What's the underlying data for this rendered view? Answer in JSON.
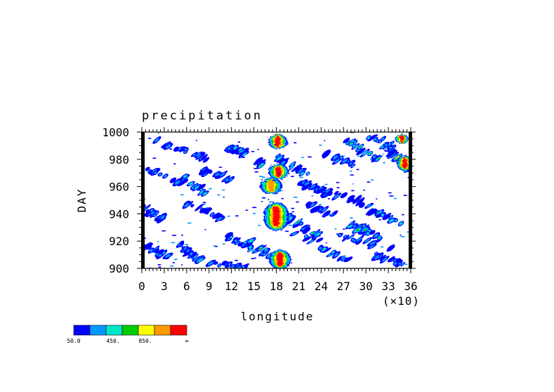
{
  "chart_data": {
    "type": "heatmap",
    "title": "precipitation",
    "xlabel": "longitude",
    "ylabel": "DAY",
    "x_multiplier_label": "(×10)",
    "xlim": [
      0,
      36
    ],
    "ylim": [
      900,
      1000
    ],
    "x_ticks": [
      0,
      3,
      6,
      9,
      12,
      15,
      18,
      21,
      24,
      27,
      30,
      33,
      36
    ],
    "y_ticks": [
      900,
      920,
      940,
      960,
      980,
      1000
    ],
    "grid": false,
    "colorbar": {
      "placement": "bottom-left",
      "colors": [
        "#0000ff",
        "#0099ff",
        "#00e6c8",
        "#00cc00",
        "#ffff00",
        "#ff9900",
        "#ff0000"
      ],
      "labels": [
        "50.0",
        "450.",
        "850.",
        "∞"
      ]
    },
    "features": [
      {
        "type": "band",
        "lon": [
          0.5,
          5.5
        ],
        "day": [
          974,
          962
        ],
        "level": 1
      },
      {
        "type": "band",
        "lon": [
          5.5,
          9.0
        ],
        "day": [
          967,
          953
        ],
        "level": 2
      },
      {
        "type": "band",
        "lon": [
          6.0,
          11.0
        ],
        "day": [
          948,
          936
        ],
        "level": 1
      },
      {
        "type": "band",
        "lon": [
          11.5,
          14.0
        ],
        "day": [
          989,
          984
        ],
        "level": 2
      },
      {
        "type": "band",
        "lon": [
          12.5,
          16.0
        ],
        "day": [
          988,
          976
        ],
        "level": 3
      },
      {
        "type": "band",
        "lon": [
          11.0,
          15.5
        ],
        "day": [
          925,
          912
        ],
        "level": 2
      },
      {
        "type": "band",
        "lon": [
          2.0,
          9.0
        ],
        "day": [
          993,
          980
        ],
        "level": 1
      },
      {
        "type": "band",
        "lon": [
          5.0,
          8.0
        ],
        "day": [
          918,
          905
        ],
        "level": 2
      },
      {
        "type": "band",
        "lon": [
          18.5,
          24.0
        ],
        "day": [
          940,
          922
        ],
        "level": 3
      },
      {
        "type": "band",
        "lon": [
          20.0,
          27.5
        ],
        "day": [
          928,
          905
        ],
        "level": 2
      },
      {
        "type": "band",
        "lon": [
          22.0,
          26.5
        ],
        "day": [
          947,
          938
        ],
        "level": 1
      },
      {
        "type": "band",
        "lon": [
          21.5,
          25.0
        ],
        "day": [
          962,
          955
        ],
        "level": 1
      },
      {
        "type": "band",
        "lon": [
          24.0,
          30.5
        ],
        "day": [
          958,
          946
        ],
        "level": 1
      },
      {
        "type": "band",
        "lon": [
          27.0,
          31.5
        ],
        "day": [
          995,
          980
        ],
        "level": 3
      },
      {
        "type": "band",
        "lon": [
          28.0,
          32.0
        ],
        "day": [
          932,
          922
        ],
        "level": 3
      },
      {
        "type": "band",
        "lon": [
          30.5,
          36.0
        ],
        "day": [
          943,
          930
        ],
        "level": 2
      },
      {
        "type": "band",
        "lon": [
          26.0,
          34.0
        ],
        "day": [
          925,
          913
        ],
        "level": 1
      },
      {
        "type": "band",
        "lon": [
          32.5,
          36.0
        ],
        "day": [
          990,
          972
        ],
        "level": 5
      },
      {
        "type": "band",
        "lon": [
          30.0,
          34.0
        ],
        "day": [
          998,
          988
        ],
        "level": 2
      },
      {
        "type": "band",
        "lon": [
          14.5,
          20.0
        ],
        "day": [
          920,
          900
        ],
        "level": 3
      },
      {
        "type": "band",
        "lon": [
          9.0,
          14.0
        ],
        "day": [
          905,
          900
        ],
        "level": 1
      },
      {
        "type": "band",
        "lon": [
          31.0,
          35.5
        ],
        "day": [
          910,
          902
        ],
        "level": 1
      },
      {
        "type": "band",
        "lon": [
          0.0,
          3.5
        ],
        "day": [
          918,
          908
        ],
        "level": 1
      },
      {
        "type": "band",
        "lon": [
          17.5,
          22.0
        ],
        "day": [
          983,
          970
        ],
        "level": 2
      },
      {
        "type": "band",
        "lon": [
          24.0,
          28.5
        ],
        "day": [
          985,
          976
        ],
        "level": 1
      },
      {
        "type": "band",
        "lon": [
          0.0,
          3.0
        ],
        "day": [
          945,
          936
        ],
        "level": 1
      },
      {
        "type": "band",
        "lon": [
          8.0,
          12.0
        ],
        "day": [
          972,
          965
        ],
        "level": 1
      },
      {
        "type": "col",
        "lon": 18.5,
        "day": [
          900,
          913
        ],
        "w": 1.4,
        "level": 6
      },
      {
        "type": "col",
        "lon": 18.0,
        "day": [
          928,
          948
        ],
        "w": 1.6,
        "level": 6
      },
      {
        "type": "col",
        "lon": 18.3,
        "day": [
          966,
          976
        ],
        "w": 1.3,
        "level": 6
      },
      {
        "type": "col",
        "lon": 18.2,
        "day": [
          988,
          998
        ],
        "w": 1.2,
        "level": 6
      },
      {
        "type": "col",
        "lon": 17.3,
        "day": [
          955,
          966
        ],
        "w": 1.4,
        "level": 5
      },
      {
        "type": "col",
        "lon": 35.2,
        "day": [
          972,
          982
        ],
        "w": 1.0,
        "level": 6
      },
      {
        "type": "col",
        "lon": 34.8,
        "day": [
          992,
          998
        ],
        "w": 0.8,
        "level": 6
      }
    ]
  }
}
